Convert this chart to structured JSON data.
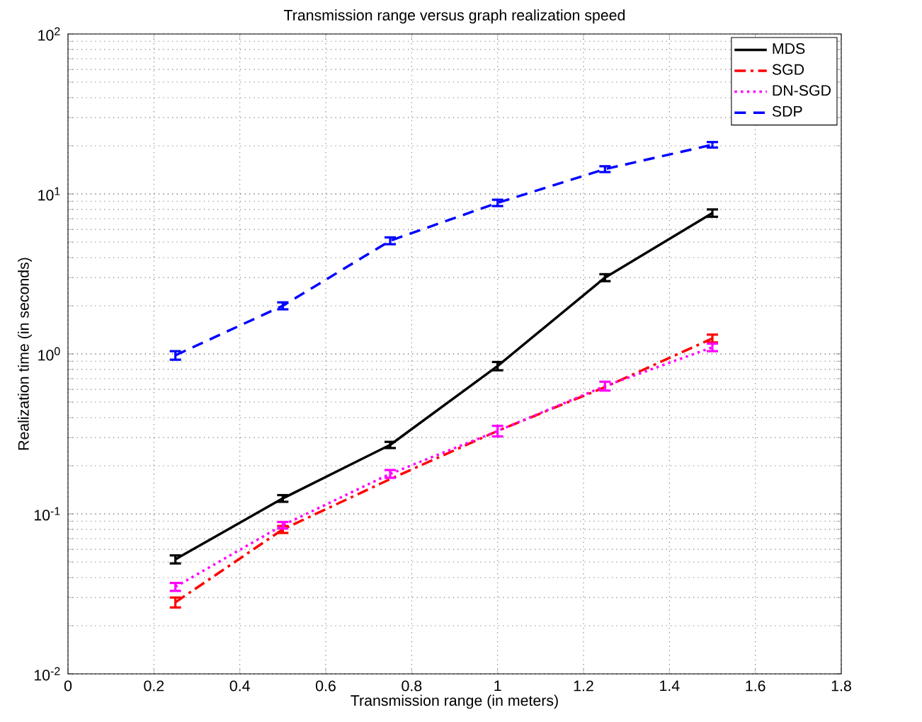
{
  "chart_data": {
    "type": "line",
    "title": "Transmission range versus graph realization speed",
    "xlabel": "Transmission range (in meters)",
    "ylabel": "Realization time (in seconds)",
    "x": [
      0.25,
      0.5,
      0.75,
      1,
      1.25,
      1.5
    ],
    "series": [
      {
        "name": "MDS",
        "color": "#000000",
        "line_style": "solid",
        "values": [
          0.052,
          0.125,
          0.27,
          0.84,
          3.0,
          7.6
        ],
        "errors": [
          0.003,
          0.006,
          0.012,
          0.05,
          0.15,
          0.4
        ]
      },
      {
        "name": "SGD",
        "color": "#ff0000",
        "line_style": "dashdot",
        "values": [
          0.028,
          0.08,
          0.165,
          0.33,
          0.62,
          1.25
        ],
        "errors": [
          0.002,
          0.004,
          null,
          null,
          null,
          0.07
        ]
      },
      {
        "name": "DN-SGD",
        "color": "#ff00ff",
        "line_style": "dotted",
        "values": [
          0.035,
          0.085,
          0.178,
          0.33,
          0.63,
          1.1
        ],
        "errors": [
          0.002,
          0.004,
          0.01,
          0.025,
          0.04,
          0.06
        ]
      },
      {
        "name": "SDP",
        "color": "#0000ff",
        "line_style": "dashed",
        "values": [
          0.98,
          2.0,
          5.1,
          8.8,
          14.3,
          20.3
        ],
        "errors": [
          0.06,
          0.1,
          0.25,
          0.4,
          0.6,
          0.8
        ]
      }
    ],
    "log": "y",
    "grid": true,
    "legend": "top right",
    "marker": "none",
    "xlim": [
      0,
      1.8
    ],
    "xticks": [
      0,
      0.2,
      0.4,
      0.6,
      0.8,
      1,
      1.2,
      1.4,
      1.6,
      1.8
    ],
    "ylim": [
      0.01,
      100
    ],
    "yticks": [
      {
        "value": 0.01,
        "label": "10$^{-2}$"
      },
      {
        "value": 0.1,
        "label": "10$^{-1}$"
      },
      {
        "value": 1,
        "label": "10$^{0}$"
      },
      {
        "value": 10,
        "label": "10$^{1}$"
      },
      {
        "value": 100,
        "label": "10$^{2}$"
      }
    ]
  }
}
